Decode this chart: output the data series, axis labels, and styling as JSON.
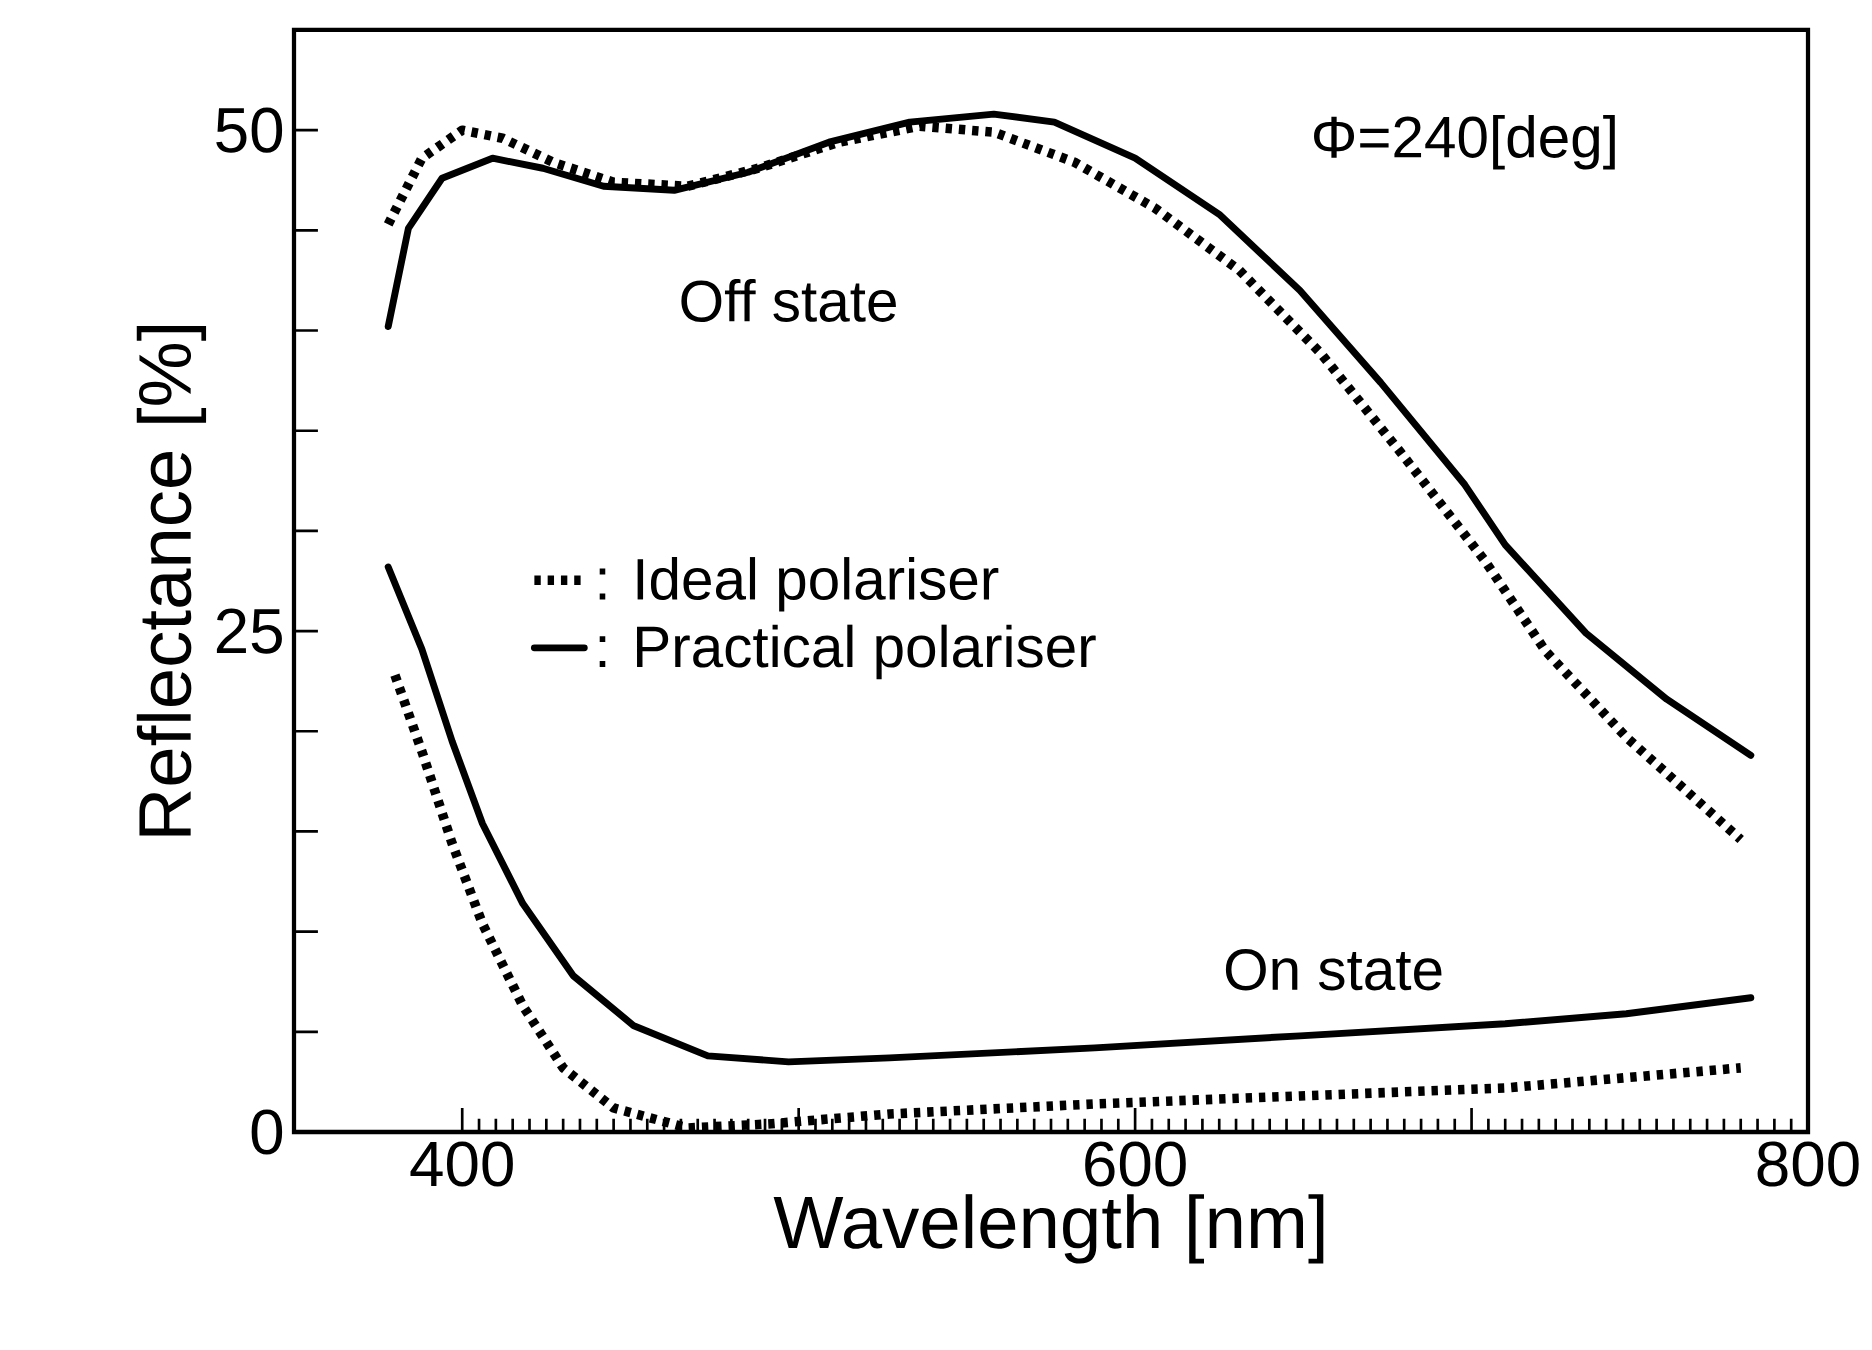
{
  "chart_data": {
    "type": "line",
    "xlabel": "Wavelength [nm]",
    "ylabel": "Reflectance [%]",
    "xlim": [
      350,
      800
    ],
    "ylim": [
      0,
      55
    ],
    "xticks": [
      400,
      {
        "value": 500,
        "label": null
      },
      600,
      {
        "value": 700,
        "label": null
      },
      800
    ],
    "yticks": [
      0,
      {
        "value": 5,
        "label": null
      },
      {
        "value": 10,
        "label": null
      },
      {
        "value": 15,
        "label": null
      },
      {
        "value": 20,
        "label": null
      },
      25,
      {
        "value": 30,
        "label": null
      },
      {
        "value": 35,
        "label": null
      },
      {
        "value": 40,
        "label": null
      },
      {
        "value": 45,
        "label": null
      },
      50
    ],
    "grid": false,
    "legend": "left",
    "marker": "none",
    "annotations": [
      "Off state",
      "On state",
      "Φ=240[deg]"
    ],
    "series": [
      {
        "name": ": Ideal polariser",
        "color": "#000000",
        "line_style": "dotted",
        "x": [
          378,
          388,
          400,
          412,
          427,
          445,
          467,
          488,
          512,
          536,
          558,
          582,
          606,
          631,
          655,
          679,
          704,
          722,
          746,
          780
        ],
        "values": [
          45.3,
          48.6,
          50.0,
          49.6,
          48.4,
          47.4,
          47.2,
          48.1,
          49.4,
          50.2,
          49.9,
          48.4,
          46.1,
          43.0,
          38.9,
          33.9,
          28.5,
          24.0,
          19.7,
          14.6
        ]
      },
      {
        "name": ": Practical polariser",
        "color": "#000000",
        "line_style": "solid",
        "x": [
          378,
          384,
          394,
          409,
          424,
          442,
          463,
          485,
          509,
          533,
          558,
          576,
          600,
          625,
          649,
          673,
          698,
          710,
          734,
          758,
          783
        ],
        "values": [
          40.2,
          45.1,
          47.6,
          48.6,
          48.1,
          47.2,
          47.0,
          47.9,
          49.4,
          50.4,
          50.8,
          50.4,
          48.6,
          45.8,
          42.0,
          37.4,
          32.3,
          29.3,
          24.9,
          21.6,
          18.8
        ]
      },
      {
        "color": "#000000",
        "line_style": "dotted",
        "x": [
          380,
          388,
          397,
          406,
          418,
          430,
          445,
          467,
          491,
          527,
          588,
          649,
          710,
          780
        ],
        "values": [
          22.8,
          19.0,
          14.4,
          10.4,
          6.3,
          3.2,
          1.2,
          0.2,
          0.4,
          0.9,
          1.4,
          1.8,
          2.2,
          3.2
        ]
      },
      {
        "color": "#000000",
        "line_style": "solid",
        "x": [
          378,
          388,
          397,
          406,
          418,
          433,
          451,
          473,
          497,
          527,
          588,
          649,
          710,
          746,
          783
        ],
        "values": [
          28.2,
          24.1,
          19.5,
          15.4,
          11.4,
          7.8,
          5.3,
          3.8,
          3.5,
          3.7,
          4.2,
          4.8,
          5.4,
          5.9,
          6.7
        ]
      }
    ]
  }
}
